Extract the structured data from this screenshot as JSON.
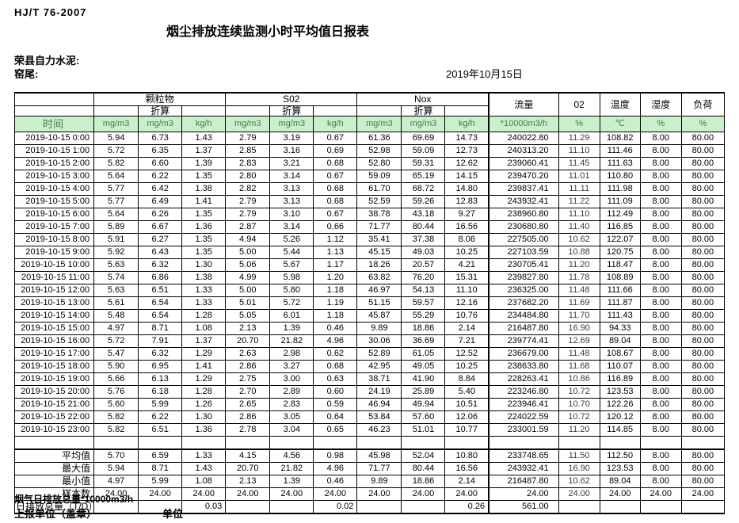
{
  "page": {
    "standard_code": "HJ/T  76-2007",
    "title": "烟尘排放连续监测小时平均值日报表",
    "company": "荣县自力水泥:",
    "monitor_point": "窑尾:",
    "date": "2019年10月15日"
  },
  "colors": {
    "header_green_bg": "#c9f0cb",
    "header_green_text": "#457a4b"
  },
  "table": {
    "time_label": "时间",
    "pollutant_groups": [
      {
        "label": "颗粒物"
      },
      {
        "label": "S02"
      },
      {
        "label": "Nox"
      }
    ],
    "converted_label": "折算",
    "flow_label": "流量",
    "o2_label": "02",
    "temp_label": "温度",
    "humidity_label": "湿度",
    "load_label": "负荷",
    "unit_row": [
      "mg/m3",
      "mg/m3",
      "kg/h",
      "mg/m3",
      "mg/m3",
      "kg/h",
      "mg/m3",
      "mg/m3",
      "kg/h",
      "*10000m3/h",
      "%",
      "℃",
      "%",
      "%"
    ],
    "rows": [
      {
        "time": "2019-10-15  0:00",
        "values": [
          "5.94",
          "6.73",
          "1.43",
          "2.79",
          "3.19",
          "0.67",
          "61.36",
          "69.69",
          "14.73",
          "240022.80",
          "11.29",
          "108.82",
          "8.00",
          "80.00"
        ]
      },
      {
        "time": "2019-10-15  1:00",
        "values": [
          "5.72",
          "6.35",
          "1.37",
          "2.85",
          "3.16",
          "0.69",
          "52.98",
          "59.09",
          "12.73",
          "240313.20",
          "11.10",
          "111.46",
          "8.00",
          "80.00"
        ]
      },
      {
        "time": "2019-10-15  2:00",
        "values": [
          "5.82",
          "6.60",
          "1.39",
          "2.83",
          "3.21",
          "0.68",
          "52.80",
          "59.31",
          "12.62",
          "239060.41",
          "11.45",
          "111.63",
          "8.00",
          "80.00"
        ]
      },
      {
        "time": "2019-10-15  3:00",
        "values": [
          "5.64",
          "6.22",
          "1.35",
          "2.80",
          "3.14",
          "0.67",
          "59.09",
          "65.19",
          "14.15",
          "239470.20",
          "11.01",
          "110.80",
          "8.00",
          "80.00"
        ]
      },
      {
        "time": "2019-10-15  4:00",
        "values": [
          "5.77",
          "6.42",
          "1.38",
          "2.82",
          "3.13",
          "0.68",
          "61.70",
          "68.72",
          "14.80",
          "239837.41",
          "11.11",
          "111.98",
          "8.00",
          "80.00"
        ]
      },
      {
        "time": "2019-10-15  5:00",
        "values": [
          "5.77",
          "6.49",
          "1.41",
          "2.79",
          "3.13",
          "0.68",
          "52.59",
          "59.26",
          "12.83",
          "243932.41",
          "11.22",
          "111.09",
          "8.00",
          "80.00"
        ]
      },
      {
        "time": "2019-10-15  6:00",
        "values": [
          "5.64",
          "6.26",
          "1.35",
          "2.79",
          "3.10",
          "0.67",
          "38.78",
          "43.18",
          "9.27",
          "238960.80",
          "11.10",
          "112.49",
          "8.00",
          "80.00"
        ]
      },
      {
        "time": "2019-10-15  7:00",
        "values": [
          "5.89",
          "6.67",
          "1.36",
          "2.87",
          "3.14",
          "0.66",
          "71.77",
          "80.44",
          "16.56",
          "230680.80",
          "11.40",
          "116.85",
          "8.00",
          "80.00"
        ]
      },
      {
        "time": "2019-10-15  8:00",
        "values": [
          "5.91",
          "6.27",
          "1.35",
          "4.94",
          "5.26",
          "1.12",
          "35.41",
          "37.38",
          "8.06",
          "227505.00",
          "10.62",
          "122.07",
          "8.00",
          "80.00"
        ]
      },
      {
        "time": "2019-10-15  9:00",
        "values": [
          "5.92",
          "6.43",
          "1.35",
          "5.00",
          "5.44",
          "1.13",
          "45.15",
          "49.03",
          "10.25",
          "227103.59",
          "10.88",
          "120.75",
          "8.00",
          "80.00"
        ]
      },
      {
        "time": "2019-10-15 10:00",
        "values": [
          "5.63",
          "6.32",
          "1.30",
          "5.06",
          "5.67",
          "1.17",
          "18.26",
          "20.57",
          "4.21",
          "230705.41",
          "11.20",
          "118.47",
          "8.00",
          "80.00"
        ]
      },
      {
        "time": "2019-10-15 11:00",
        "values": [
          "5.74",
          "6.86",
          "1.38",
          "4.99",
          "5.98",
          "1.20",
          "63.82",
          "76.20",
          "15.31",
          "239827.80",
          "11.78",
          "108.89",
          "8.00",
          "80.00"
        ]
      },
      {
        "time": "2019-10-15 12:00",
        "values": [
          "5.63",
          "6.51",
          "1.33",
          "5.00",
          "5.80",
          "1.18",
          "46.97",
          "54.13",
          "11.10",
          "236325.00",
          "11.48",
          "111.66",
          "8.00",
          "80.00"
        ]
      },
      {
        "time": "2019-10-15 13:00",
        "values": [
          "5.61",
          "6.54",
          "1.33",
          "5.01",
          "5.72",
          "1.19",
          "51.15",
          "59.57",
          "12.16",
          "237682.20",
          "11.69",
          "111.87",
          "8.00",
          "80.00"
        ]
      },
      {
        "time": "2019-10-15 14:00",
        "values": [
          "5.48",
          "6.54",
          "1.28",
          "5.05",
          "6.01",
          "1.18",
          "45.87",
          "55.29",
          "10.76",
          "234484.80",
          "11.70",
          "111.43",
          "8.00",
          "80.00"
        ]
      },
      {
        "time": "2019-10-15 15:00",
        "values": [
          "4.97",
          "8.71",
          "1.08",
          "2.13",
          "1.39",
          "0.46",
          "9.89",
          "18.86",
          "2.14",
          "216487.80",
          "16.90",
          "94.33",
          "8.00",
          "80.00"
        ]
      },
      {
        "time": "2019-10-15 16:00",
        "values": [
          "5.72",
          "7.91",
          "1.37",
          "20.70",
          "21.82",
          "4.96",
          "30.06",
          "36.69",
          "7.21",
          "239774.41",
          "12.69",
          "89.04",
          "8.00",
          "80.00"
        ]
      },
      {
        "time": "2019-10-15 17:00",
        "values": [
          "5.47",
          "6.32",
          "1.29",
          "2.63",
          "2.98",
          "0.62",
          "52.89",
          "61.05",
          "12.52",
          "236679.00",
          "11.48",
          "108.67",
          "8.00",
          "80.00"
        ]
      },
      {
        "time": "2019-10-15 18:00",
        "values": [
          "5.90",
          "6.95",
          "1.41",
          "2.86",
          "3.27",
          "0.68",
          "42.95",
          "49.05",
          "10.25",
          "238633.80",
          "11.68",
          "110.07",
          "8.00",
          "80.00"
        ]
      },
      {
        "time": "2019-10-15 19:00",
        "values": [
          "5.66",
          "6.13",
          "1.29",
          "2.75",
          "3.00",
          "0.63",
          "38.71",
          "41.90",
          "8.84",
          "228263.41",
          "10.86",
          "116.89",
          "8.00",
          "80.00"
        ]
      },
      {
        "time": "2019-10-15 20:00",
        "values": [
          "5.76",
          "6.18",
          "1.28",
          "2.70",
          "2.89",
          "0.60",
          "24.19",
          "25.89",
          "5.40",
          "223246.80",
          "10.72",
          "123.53",
          "8.00",
          "80.00"
        ]
      },
      {
        "time": "2019-10-15 21:00",
        "values": [
          "5.60",
          "5.99",
          "1.26",
          "2.65",
          "2.83",
          "0.59",
          "46.94",
          "49.94",
          "10.51",
          "223946.41",
          "10.70",
          "122.26",
          "8.00",
          "80.00"
        ]
      },
      {
        "time": "2019-10-15 22:00",
        "values": [
          "5.82",
          "6.22",
          "1.30",
          "2.86",
          "3.05",
          "0.64",
          "53.84",
          "57.60",
          "12.06",
          "224022.59",
          "10.72",
          "120.12",
          "8.00",
          "80.00"
        ]
      },
      {
        "time": "2019-10-15 23:00",
        "values": [
          "5.82",
          "6.51",
          "1.36",
          "2.78",
          "3.04",
          "0.65",
          "46.23",
          "51.01",
          "10.77",
          "233001.59",
          "11.20",
          "114.85",
          "8.00",
          "80.00"
        ]
      }
    ],
    "summary_rows": [
      {
        "label": "平均值",
        "values": [
          "5.70",
          "6.59",
          "1.33",
          "4.15",
          "4.56",
          "0.98",
          "45.98",
          "52.04",
          "10.80",
          "233748.65",
          "11.50",
          "112.50",
          "8.00",
          "80.00"
        ]
      },
      {
        "label": "最大值",
        "values": [
          "5.94",
          "8.71",
          "1.43",
          "20.70",
          "21.82",
          "4.96",
          "71.77",
          "80.44",
          "16.56",
          "243932.41",
          "16.90",
          "123.53",
          "8.00",
          "80.00"
        ]
      },
      {
        "label": "最小值",
        "values": [
          "4.97",
          "5.99",
          "1.08",
          "2.13",
          "1.39",
          "0.46",
          "9.89",
          "18.86",
          "2.14",
          "216487.80",
          "10.62",
          "89.04",
          "8.00",
          "80.00"
        ]
      },
      {
        "label": "样本数",
        "values": [
          "24.00",
          "24.00",
          "24.00",
          "24.00",
          "24.00",
          "24.00",
          "24.00",
          "24.00",
          "24.00",
          "24.00",
          "24.00",
          "24.00",
          "24.00",
          "24.00"
        ]
      },
      {
        "label": "日排放总量（T/D）",
        "label_align": "left",
        "value_align": "right",
        "values": [
          "",
          "",
          "0.03",
          "",
          "",
          "0.02",
          "",
          "",
          "0.26",
          "561.00",
          "",
          "",
          "",
          ""
        ]
      }
    ]
  },
  "footer": {
    "flue_gas_total": "烟气日排放总量*10000m3/h",
    "report_unit": "上报单位（盖章）",
    "unit": "单位"
  }
}
